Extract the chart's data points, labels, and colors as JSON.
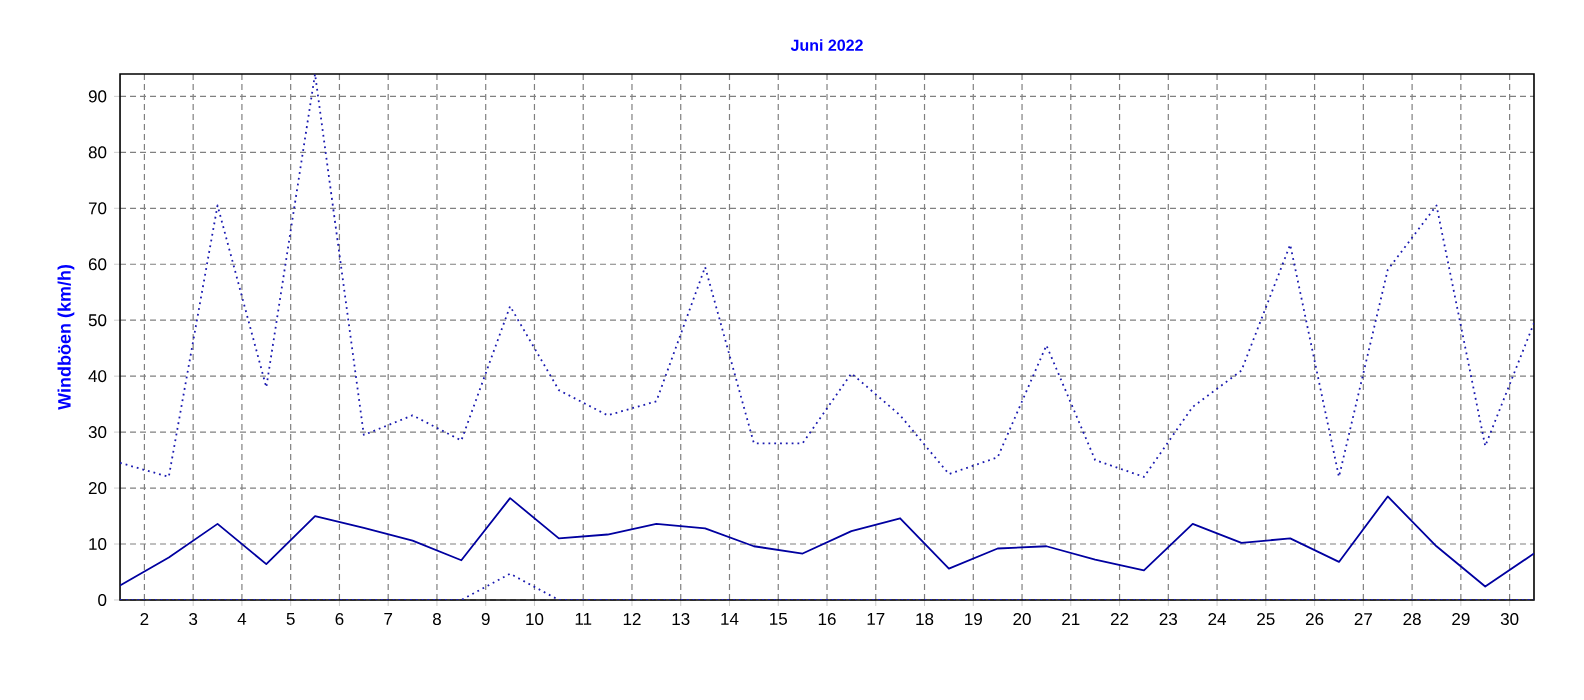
{
  "chart_data": {
    "type": "line",
    "title": "Juni 2022",
    "ylabel": "Windböen (km/h)",
    "x": [
      1.5,
      2.5,
      3.5,
      4.5,
      5.5,
      6.5,
      7.5,
      8.5,
      9.5,
      10.5,
      11.5,
      12.5,
      13.5,
      14.5,
      15.5,
      16.5,
      17.5,
      18.5,
      19.5,
      20.5,
      21.5,
      22.5,
      23.5,
      24.5,
      25.5,
      26.5,
      27.5,
      28.5,
      29.5,
      30.5
    ],
    "series": [
      {
        "color": "#1a1ab0",
        "line_style": "dotted",
        "values": [
          24.5,
          22,
          70.5,
          38,
          94,
          29.5,
          33,
          28.5,
          52.5,
          37.5,
          33,
          35.5,
          59.5,
          28,
          28,
          40.5,
          33,
          22.5,
          25.5,
          45.5,
          25,
          22,
          34.5,
          41,
          63.5,
          22,
          59,
          70.5,
          27.5,
          49.5
        ]
      },
      {
        "color": "#0000a0",
        "line_style": "solid",
        "values": [
          2.6,
          7.6,
          13.6,
          6.4,
          15,
          12.9,
          10.6,
          7.1,
          18.2,
          11,
          11.7,
          13.6,
          12.8,
          9.6,
          8.3,
          12.3,
          14.6,
          5.6,
          9.2,
          9.6,
          7.2,
          5.3,
          13.6,
          10.2,
          11,
          6.8,
          18.5,
          9.6,
          2.4,
          8.3
        ]
      },
      {
        "color": "#1a1ab0",
        "line_style": "dotted",
        "values": [
          0,
          0,
          0,
          0,
          0,
          0,
          0,
          0,
          4.7,
          0,
          0,
          0,
          0,
          0,
          0,
          0,
          0,
          0,
          0,
          0,
          0,
          0,
          0,
          0,
          0,
          0,
          0,
          0,
          0,
          0
        ]
      }
    ],
    "xlim": [
      1.5,
      30.5
    ],
    "ylim": [
      0,
      94
    ],
    "xticks": [
      2,
      3,
      4,
      5,
      6,
      7,
      8,
      9,
      10,
      11,
      12,
      13,
      14,
      15,
      16,
      17,
      18,
      19,
      20,
      21,
      22,
      23,
      24,
      25,
      26,
      27,
      28,
      29,
      30
    ],
    "yticks": [
      0,
      10,
      20,
      30,
      40,
      50,
      60,
      70,
      80,
      90
    ],
    "grid": true,
    "marker": "none"
  }
}
